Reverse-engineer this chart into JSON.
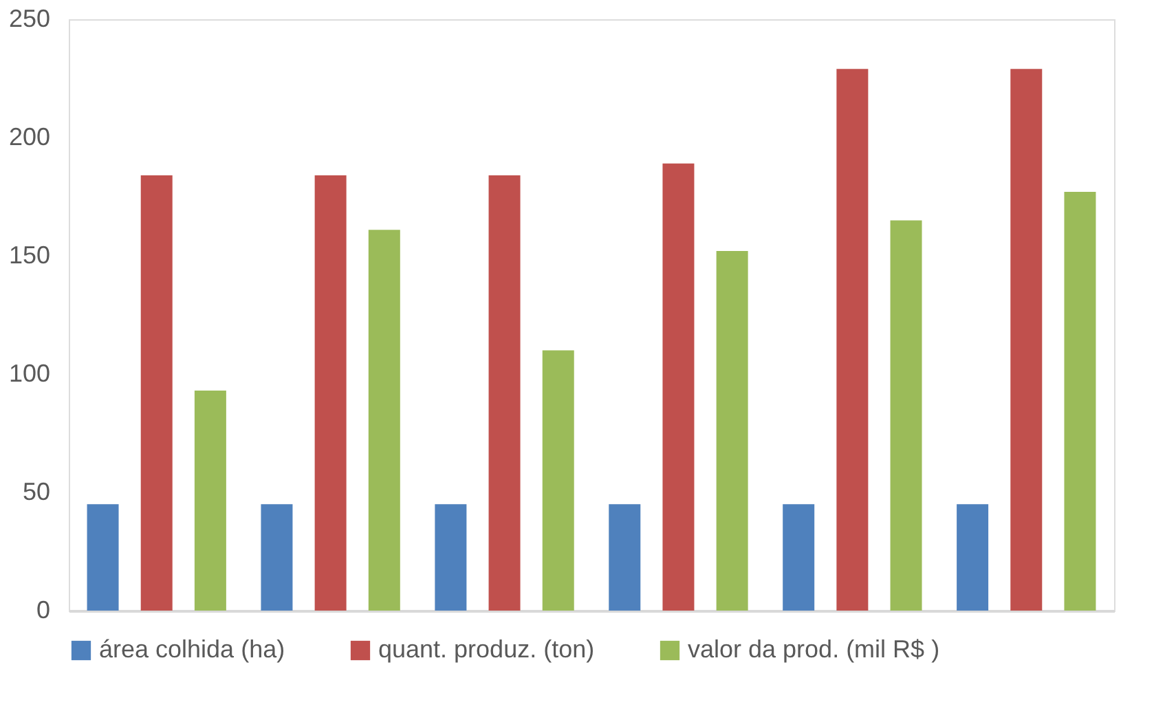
{
  "chart_data": {
    "type": "bar",
    "categories": [
      null,
      null,
      null,
      null,
      null,
      null
    ],
    "series": [
      {
        "name": "área colhida (ha)",
        "color": "#4f81bd",
        "values": [
          45,
          45,
          45,
          45,
          45,
          45
        ]
      },
      {
        "name": "quant. produz. (ton)",
        "color": "#c0504d",
        "values": [
          184,
          184,
          184,
          189,
          229,
          229
        ]
      },
      {
        "name": "valor da prod. (mil R$ )",
        "color": "#9bbb59",
        "values": [
          93,
          161,
          110,
          152,
          165,
          177
        ]
      }
    ],
    "ylim": [
      0,
      250
    ],
    "yticks": [
      0,
      50,
      100,
      150,
      200,
      250
    ],
    "grid": false,
    "legend": "bottom"
  }
}
